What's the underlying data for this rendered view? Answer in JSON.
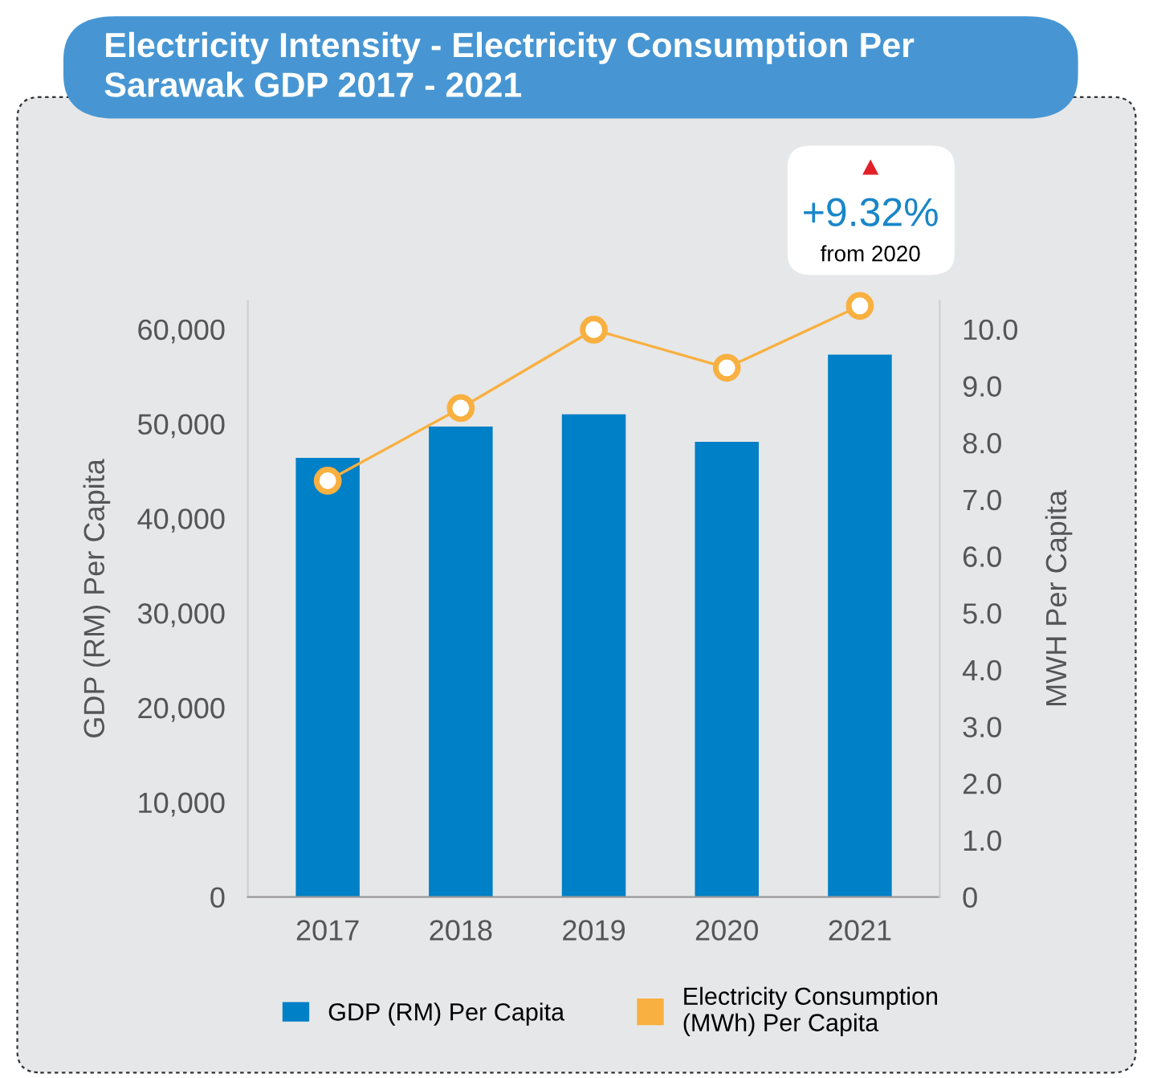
{
  "chart_data": {
    "type": "bar",
    "title": "Electricity Intensity - Electricity Consumption Per\nSarawak GDP 2017 - 2021",
    "categories": [
      "2017",
      "2018",
      "2019",
      "2020",
      "2021"
    ],
    "series": [
      {
        "name": "GDP (RM) Per Capita",
        "color": "#0080c6",
        "values": [
          46400,
          49700,
          51000,
          48100,
          57300
        ]
      },
      {
        "name": "Electricity Consumption\n(MWh) Per Capita",
        "type": "line",
        "axis": "y2",
        "color": "#f8b040",
        "values": [
          7.33,
          8.61,
          9.99,
          9.32,
          10.41
        ]
      }
    ],
    "ylabel": "GDP (RM) Per Capita",
    "y2label": "MWH Per Capita",
    "ylim": [
      0,
      63000
    ],
    "yticks": [
      0,
      {
        "value": 10000,
        "label": "10,000"
      },
      {
        "value": 20000,
        "label": "20,000"
      },
      {
        "value": 30000,
        "label": "30,000"
      },
      {
        "value": 40000,
        "label": "40,000"
      },
      {
        "value": 50000,
        "label": "50,000"
      },
      {
        "value": 60000,
        "label": "60,000"
      }
    ],
    "y2lim": [
      0,
      10.5
    ],
    "y2ticks": [
      0,
      {
        "value": 1,
        "label": "1.0"
      },
      {
        "value": 2,
        "label": "2.0"
      },
      {
        "value": 3,
        "label": "3.0"
      },
      {
        "value": 4,
        "label": "4.0"
      },
      {
        "value": 5,
        "label": "5.0"
      },
      {
        "value": 6,
        "label": "6.0"
      },
      {
        "value": 7,
        "label": "7.0"
      },
      {
        "value": 8,
        "label": "8.0"
      },
      {
        "value": 9,
        "label": "9.0"
      },
      {
        "value": 10,
        "label": "10.0"
      }
    ],
    "annotations": [
      "+9.32%",
      "from 2020"
    ],
    "marker": "circle",
    "line_style": "solid",
    "grid": false,
    "legend": "bottom"
  }
}
